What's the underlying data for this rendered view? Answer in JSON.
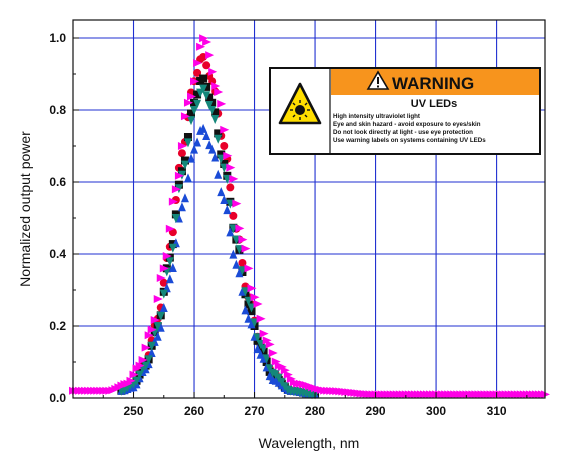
{
  "chart_data": {
    "type": "scatter",
    "title": "",
    "xlabel": "Wavelength, nm",
    "ylabel": "Normalized output power",
    "xlim": [
      240,
      318
    ],
    "ylim": [
      0,
      1.05
    ],
    "xticks": [
      250,
      260,
      270,
      280,
      290,
      300,
      310
    ],
    "yticks": [
      0.0,
      0.2,
      0.4,
      0.6,
      0.8,
      1.0
    ],
    "grid": true,
    "legend": "none",
    "series": [
      {
        "color": "#e8002a",
        "marker": "circle",
        "peak_x": 261.3,
        "peak_y": 0.95,
        "fwhm": 10.5,
        "points": [
          [
            248,
            0.02
          ],
          [
            250,
            0.04
          ],
          [
            252,
            0.1
          ],
          [
            254,
            0.22
          ],
          [
            256,
            0.42
          ],
          [
            258,
            0.68
          ],
          [
            260,
            0.88
          ],
          [
            261.3,
            0.95
          ],
          [
            263,
            0.88
          ],
          [
            265,
            0.7
          ],
          [
            267,
            0.47
          ],
          [
            269,
            0.28
          ],
          [
            271,
            0.15
          ],
          [
            273,
            0.07
          ],
          [
            276,
            0.02
          ],
          [
            280,
            0.01
          ]
        ]
      },
      {
        "color": "#111111",
        "marker": "square",
        "peak_x": 261.3,
        "peak_y": 0.89,
        "fwhm": 10.5,
        "points": [
          [
            248,
            0.02
          ],
          [
            250,
            0.04
          ],
          [
            252,
            0.09
          ],
          [
            254,
            0.2
          ],
          [
            256,
            0.39
          ],
          [
            258,
            0.63
          ],
          [
            260,
            0.82
          ],
          [
            261.3,
            0.89
          ],
          [
            263,
            0.82
          ],
          [
            265,
            0.65
          ],
          [
            267,
            0.44
          ],
          [
            269,
            0.26
          ],
          [
            271,
            0.14
          ],
          [
            273,
            0.06
          ],
          [
            276,
            0.02
          ],
          [
            280,
            0.01
          ]
        ]
      },
      {
        "color": "#1a4bd6",
        "marker": "triangle-up",
        "peak_x": 261.3,
        "peak_y": 0.75,
        "fwhm": 10.5,
        "points": [
          [
            248,
            0.02
          ],
          [
            250,
            0.03
          ],
          [
            252,
            0.08
          ],
          [
            254,
            0.17
          ],
          [
            256,
            0.33
          ],
          [
            258,
            0.53
          ],
          [
            260,
            0.69
          ],
          [
            261.3,
            0.75
          ],
          [
            263,
            0.69
          ],
          [
            265,
            0.55
          ],
          [
            267,
            0.37
          ],
          [
            269,
            0.22
          ],
          [
            271,
            0.12
          ],
          [
            273,
            0.05
          ],
          [
            276,
            0.02
          ],
          [
            280,
            0.01
          ]
        ]
      },
      {
        "color": "#14877a",
        "marker": "triangle-down",
        "peak_x": 261.4,
        "peak_y": 0.86,
        "fwhm": 11.0,
        "points": [
          [
            248,
            0.02
          ],
          [
            250,
            0.04
          ],
          [
            252,
            0.09
          ],
          [
            254,
            0.2
          ],
          [
            256,
            0.38
          ],
          [
            258,
            0.62
          ],
          [
            260,
            0.8
          ],
          [
            261.4,
            0.86
          ],
          [
            263,
            0.8
          ],
          [
            265,
            0.64
          ],
          [
            267,
            0.44
          ],
          [
            269,
            0.27
          ],
          [
            271,
            0.15
          ],
          [
            273,
            0.07
          ],
          [
            276,
            0.02
          ],
          [
            280,
            0.01
          ]
        ]
      },
      {
        "color": "#ff00e6",
        "marker": "triangle-right",
        "peak_x": 261.6,
        "peak_y": 1.0,
        "fwhm": 12.5,
        "points": [
          [
            240,
            0.02
          ],
          [
            246,
            0.02
          ],
          [
            249,
            0.04
          ],
          [
            251,
            0.09
          ],
          [
            253,
            0.19
          ],
          [
            255,
            0.36
          ],
          [
            257,
            0.58
          ],
          [
            259,
            0.82
          ],
          [
            261.6,
            1.0
          ],
          [
            264,
            0.85
          ],
          [
            266,
            0.64
          ],
          [
            268,
            0.44
          ],
          [
            270,
            0.28
          ],
          [
            272,
            0.16
          ],
          [
            274,
            0.09
          ],
          [
            277,
            0.04
          ],
          [
            282,
            0.02
          ],
          [
            290,
            0.01
          ],
          [
            318,
            0.01
          ]
        ]
      }
    ]
  },
  "warning": {
    "title": "WARNING",
    "subtitle": "UV LEDs",
    "lines": [
      "High intensity ultraviolet light",
      "Eye and skin hazard - avoid exposure to eyes/skin",
      "Do not look directly at light - use eye protection",
      "Use warning labels on systems containing UV LEDs"
    ],
    "banner_color": "#f7941d",
    "symbol_color": "#ffde00"
  }
}
